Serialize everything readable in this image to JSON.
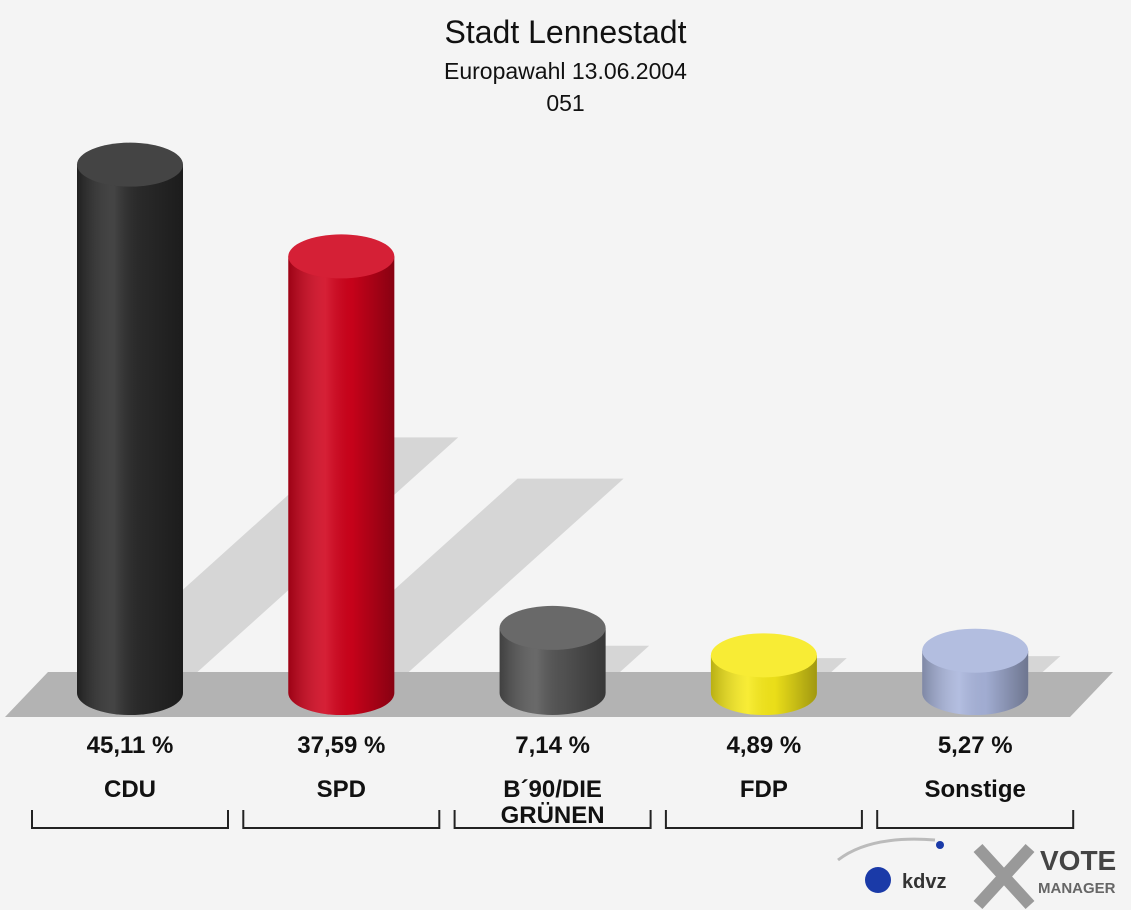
{
  "chart_data": {
    "type": "bar",
    "title": "Stadt Lennestadt",
    "subtitle": "Europawahl 13.06.2004",
    "district": "051",
    "categories": [
      "CDU",
      "SPD",
      "B´90/DIE GRÜNEN",
      "FDP",
      "Sonstige"
    ],
    "values": [
      45.11,
      37.59,
      7.14,
      4.89,
      5.27
    ],
    "value_labels": [
      "45,11 %",
      "37,59 %",
      "7,14 %",
      "4,89 %",
      "5,27 %"
    ],
    "colors": [
      "#2b2b2b",
      "#d0021b",
      "#555555",
      "#f7ea1a",
      "#a9b5dc"
    ],
    "logo": {
      "left": "kdvz",
      "right_top": "VOTE",
      "right_bottom": "MANAGER"
    }
  }
}
